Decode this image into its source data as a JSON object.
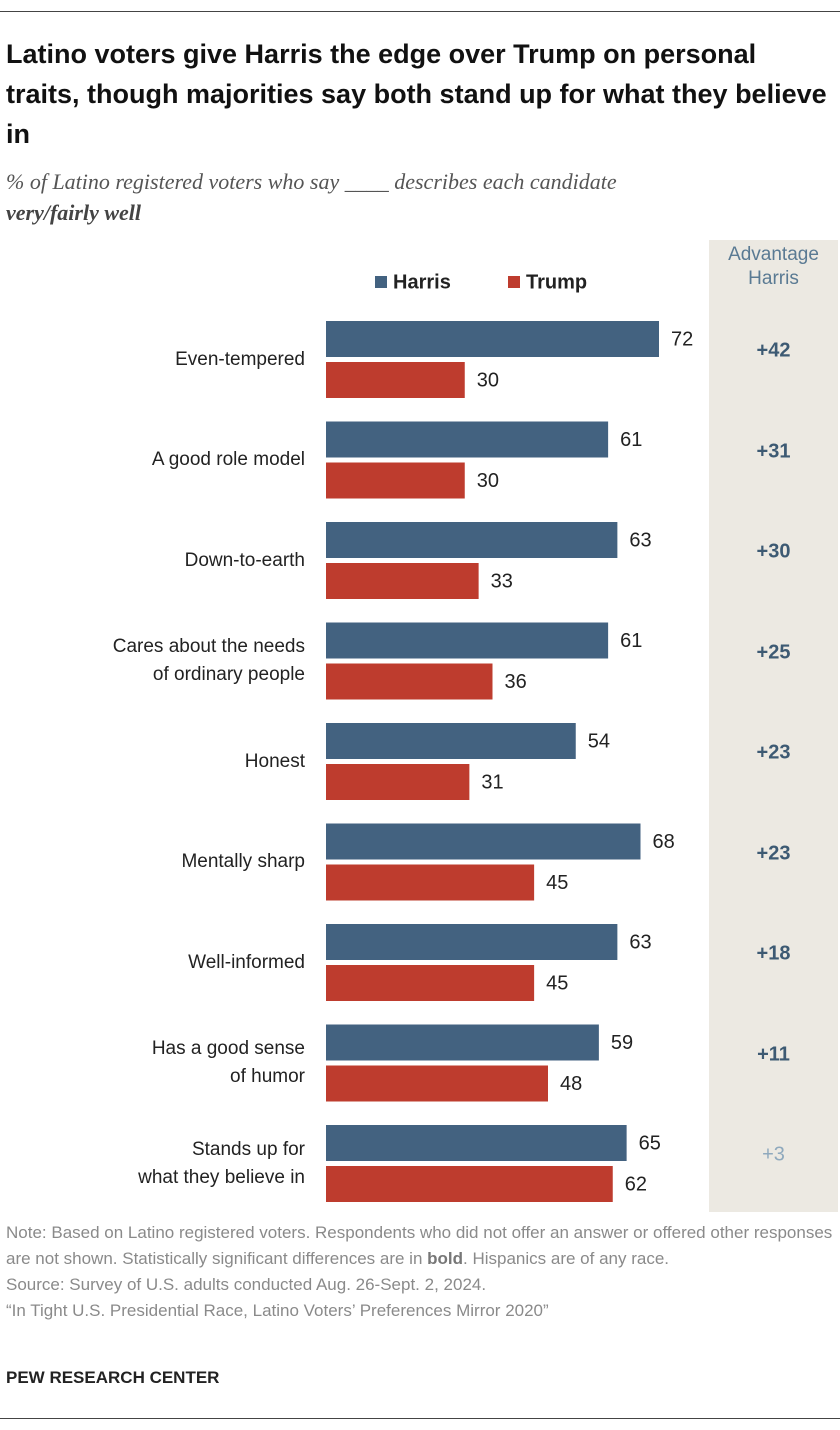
{
  "chart_data": {
    "type": "bar",
    "orientation": "horizontal",
    "title": "Latino voters give Harris the edge over Trump on personal traits, though majorities say both stand up for what they believe in",
    "subtitle": "% of Latino registered voters who say ____ describes each candidate",
    "subtitle_bold": "very/fairly well",
    "categories": [
      "Even-tempered",
      "A good role model",
      "Down-to-earth",
      "Cares about the needs\nof ordinary people",
      "Honest",
      "Mentally sharp",
      "Well-informed",
      "Has a good sense\nof humor",
      "Stands up for\nwhat they believe in"
    ],
    "series": [
      {
        "name": "Harris",
        "color": "#436280",
        "values": [
          72,
          61,
          63,
          61,
          54,
          68,
          63,
          59,
          65
        ]
      },
      {
        "name": "Trump",
        "color": "#be3c2e",
        "values": [
          30,
          30,
          33,
          36,
          31,
          45,
          45,
          48,
          62
        ]
      }
    ],
    "advantage": {
      "title": "Advantage\nHarris",
      "values": [
        42,
        31,
        30,
        25,
        23,
        23,
        18,
        11,
        3
      ],
      "value_labels": [
        "+42",
        "+31",
        "+30",
        "+25",
        "+23",
        "+23",
        "+18",
        "+11",
        "+3"
      ],
      "significant": [
        true,
        true,
        true,
        true,
        true,
        true,
        true,
        true,
        false
      ]
    },
    "note": [
      "Note: Based on Latino registered voters. Respondents who did not offer an answer or offered other responses are not shown. Statistically significant differences are in ",
      "bold",
      ". Hispanics are of any race."
    ],
    "source": "Source: Survey of U.S. adults conducted Aug. 26-Sept. 2, 2024.",
    "report": "“In Tight U.S. Presidential Race, Latino Voters’ Preferences Mirror 2020”",
    "credit": "PEW RESEARCH CENTER"
  }
}
